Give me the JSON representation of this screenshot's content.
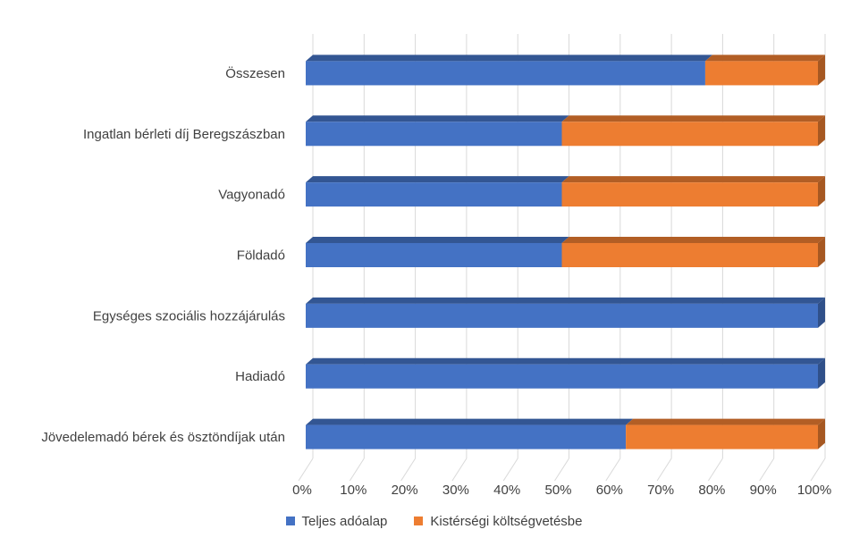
{
  "chart_data": {
    "type": "bar",
    "orientation": "horizontal",
    "stacked": "percent",
    "categories": [
      "Összesen",
      "Ingatlan bérleti díj Beregszászban",
      "Vagyonadó",
      "Földadó",
      "Egységes szociális hozzájárulás",
      "Hadiadó",
      "Jövedelemadó bérek és ösztöndíjak után"
    ],
    "series": [
      {
        "name": "Teljes adóalap",
        "color": "#4472C4",
        "values": [
          78,
          50,
          50,
          50,
          100,
          100,
          62.5
        ]
      },
      {
        "name": "Kistérségi költségvetésbe",
        "color": "#ED7D31",
        "values": [
          22,
          50,
          50,
          50,
          0,
          0,
          37.5
        ]
      }
    ],
    "x_ticks": [
      "0%",
      "10%",
      "20%",
      "30%",
      "40%",
      "50%",
      "60%",
      "70%",
      "80%",
      "90%",
      "100%"
    ],
    "xlim": [
      0,
      100
    ],
    "legend_position": "bottom",
    "title": ""
  },
  "legend": {
    "items": [
      {
        "label": "Teljes adóalap",
        "color": "#4472C4"
      },
      {
        "label": "Kistérségi költségvetésbe",
        "color": "#ED7D31"
      }
    ]
  }
}
